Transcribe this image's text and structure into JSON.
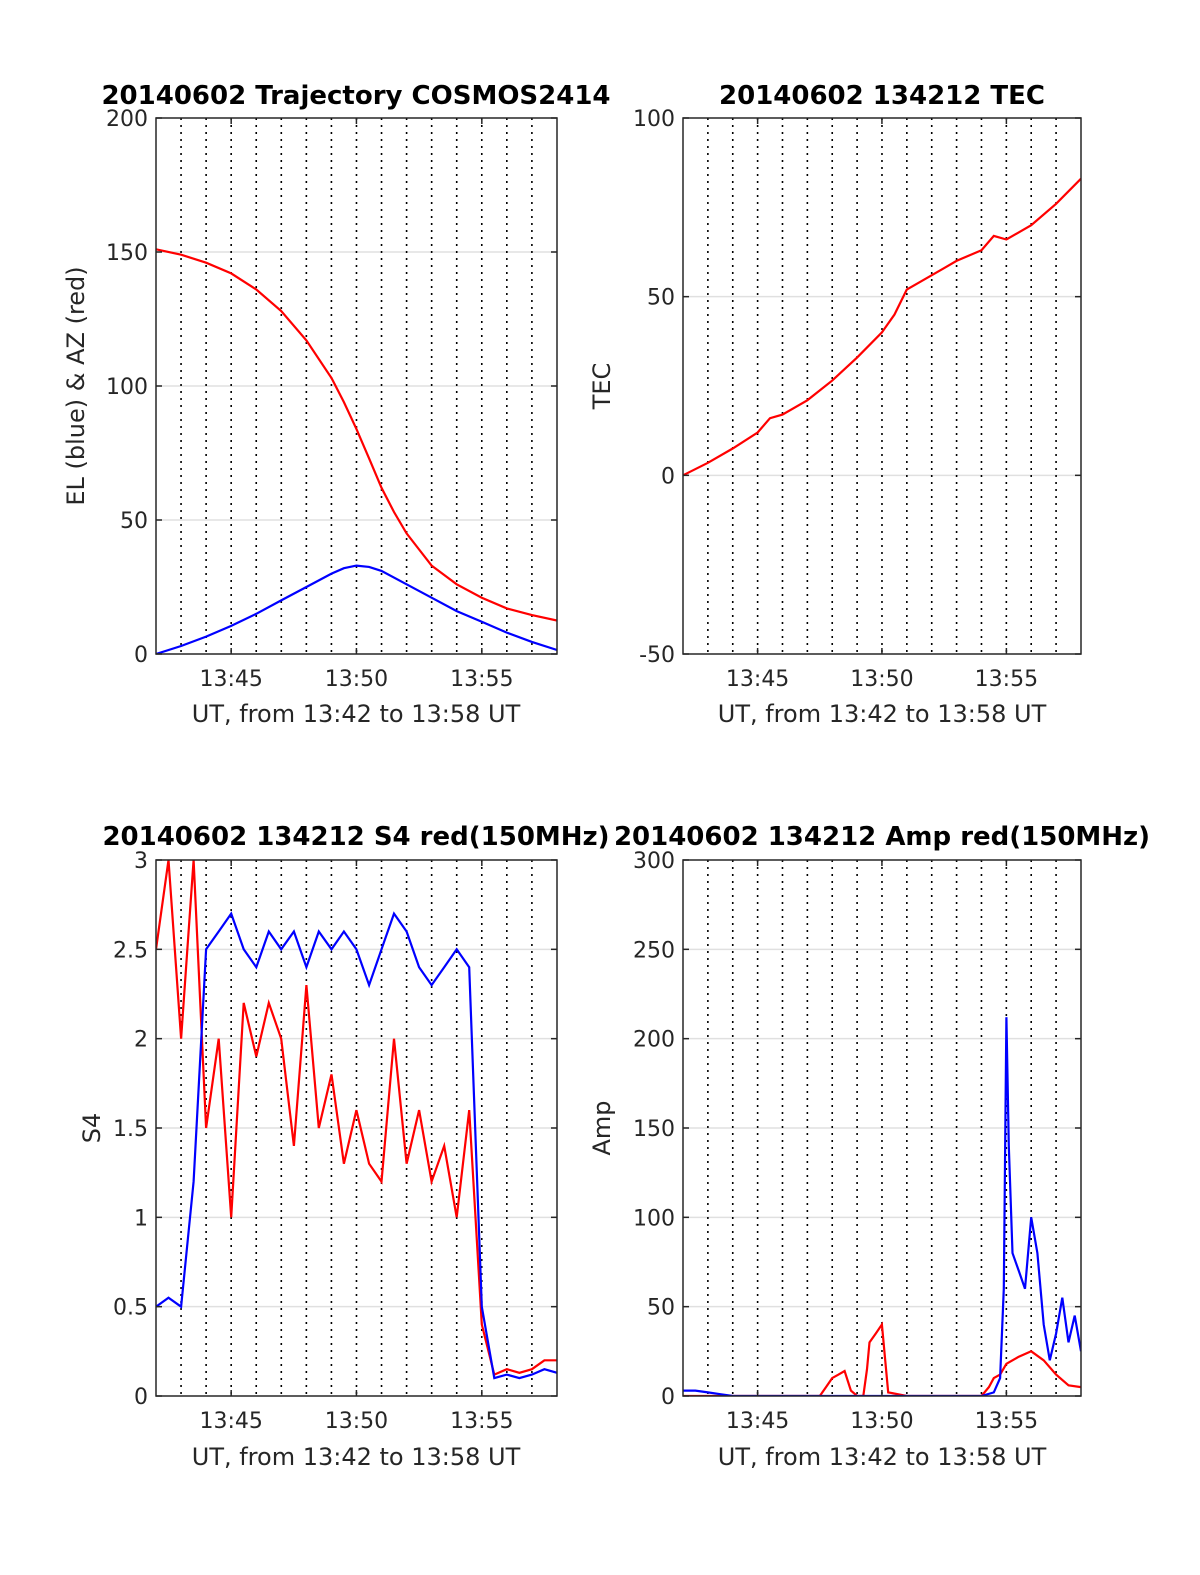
{
  "colors": {
    "series_red": "#ff0000",
    "series_blue": "#0000ff",
    "grid": "#e0e0e0",
    "axis": "#262626",
    "vline": "#000000"
  },
  "chart_data": [
    {
      "type": "line",
      "title": "20140602 Trajectory COSMOS2414",
      "xlabel": "UT, from 13:42 to 13:58 UT",
      "ylabel": "EL (blue) & AZ (red)",
      "xlim": [
        13.7,
        13.9667
      ],
      "ylim": [
        0,
        200
      ],
      "xticks": [
        13.75,
        13.8333,
        13.9167
      ],
      "xticklabels": [
        "13:45",
        "13:50",
        "13:55"
      ],
      "yticks": [
        0,
        50,
        100,
        150,
        200
      ],
      "yticklabels": [
        "0",
        "50",
        "100",
        "150",
        "200"
      ],
      "grid": true,
      "series": [
        {
          "color": "red",
          "x": [
            13.7,
            13.7167,
            13.7333,
            13.75,
            13.7667,
            13.7833,
            13.8,
            13.8167,
            13.825,
            13.8333,
            13.8417,
            13.85,
            13.8583,
            13.8667,
            13.875,
            13.8833,
            13.9,
            13.9167,
            13.9333,
            13.95,
            13.9667
          ],
          "y": [
            151,
            149,
            146,
            142,
            136,
            128,
            117,
            103,
            94,
            84,
            73,
            62,
            53,
            45,
            39,
            33,
            26,
            21,
            17,
            14.5,
            12.5
          ]
        },
        {
          "color": "blue",
          "x": [
            13.7,
            13.7167,
            13.7333,
            13.75,
            13.7667,
            13.7833,
            13.8,
            13.8167,
            13.825,
            13.8333,
            13.8417,
            13.85,
            13.8667,
            13.8833,
            13.9,
            13.9167,
            13.9333,
            13.95,
            13.9667
          ],
          "y": [
            0,
            3,
            6.5,
            10.5,
            15,
            20,
            25,
            30,
            32,
            33,
            32.5,
            31,
            26,
            21,
            16,
            12,
            8,
            4.5,
            1.5
          ]
        }
      ]
    },
    {
      "type": "line",
      "title": "20140602 134212 TEC",
      "xlabel": "UT, from 13:42 to 13:58 UT",
      "ylabel": "TEC",
      "xlim": [
        13.7,
        13.9667
      ],
      "ylim": [
        -50,
        100
      ],
      "xticks": [
        13.75,
        13.8333,
        13.9167
      ],
      "xticklabels": [
        "13:45",
        "13:50",
        "13:55"
      ],
      "yticks": [
        -50,
        0,
        50,
        100
      ],
      "yticklabels": [
        "-50",
        "0",
        "50",
        "100"
      ],
      "grid": true,
      "series": [
        {
          "color": "red",
          "x": [
            13.7,
            13.7167,
            13.7333,
            13.75,
            13.7583,
            13.7667,
            13.7833,
            13.8,
            13.8167,
            13.8333,
            13.8417,
            13.85,
            13.8583,
            13.8667,
            13.875,
            13.8833,
            13.9,
            13.9083,
            13.9167,
            13.9333,
            13.95,
            13.9667
          ],
          "y": [
            0,
            3.5,
            7.5,
            12,
            16,
            17,
            21,
            26.5,
            33,
            40,
            45,
            52,
            54,
            56,
            58,
            60,
            63,
            67,
            66,
            70,
            76,
            83
          ]
        }
      ]
    },
    {
      "type": "line",
      "title": "20140602 134212 S4 red(150MHz)",
      "xlabel": "UT, from 13:42 to 13:58 UT",
      "ylabel": "S4",
      "xlim": [
        13.7,
        13.9667
      ],
      "ylim": [
        0,
        3
      ],
      "xticks": [
        13.75,
        13.8333,
        13.9167
      ],
      "xticklabels": [
        "13:45",
        "13:50",
        "13:55"
      ],
      "yticks": [
        0,
        0.5,
        1,
        1.5,
        2,
        2.5,
        3
      ],
      "yticklabels": [
        "0",
        "0.5",
        "1",
        "1.5",
        "2",
        "2.5",
        "3"
      ],
      "grid": true,
      "series": [
        {
          "color": "red",
          "x": [
            13.7,
            13.7083,
            13.7167,
            13.725,
            13.7333,
            13.7417,
            13.75,
            13.7583,
            13.7667,
            13.775,
            13.7833,
            13.7917,
            13.8,
            13.8083,
            13.8167,
            13.825,
            13.8333,
            13.8417,
            13.85,
            13.8583,
            13.8667,
            13.875,
            13.8833,
            13.8917,
            13.9,
            13.9083,
            13.9167,
            13.925,
            13.9333,
            13.9417,
            13.95,
            13.9583,
            13.9667
          ],
          "y": [
            2.5,
            3.0,
            2.0,
            3.0,
            1.5,
            2.0,
            1.0,
            2.2,
            1.9,
            2.2,
            2.0,
            1.4,
            2.3,
            1.5,
            1.8,
            1.3,
            1.6,
            1.3,
            1.2,
            2.0,
            1.3,
            1.6,
            1.2,
            1.4,
            1.0,
            1.6,
            0.4,
            0.12,
            0.15,
            0.13,
            0.15,
            0.2,
            0.2
          ]
        },
        {
          "color": "blue",
          "x": [
            13.7,
            13.7083,
            13.7167,
            13.725,
            13.7333,
            13.7417,
            13.75,
            13.7583,
            13.7667,
            13.775,
            13.7833,
            13.7917,
            13.8,
            13.8083,
            13.8167,
            13.825,
            13.8333,
            13.8417,
            13.85,
            13.8583,
            13.8667,
            13.875,
            13.8833,
            13.8917,
            13.9,
            13.9083,
            13.9167,
            13.925,
            13.9333,
            13.9417,
            13.95,
            13.9583,
            13.9667
          ],
          "y": [
            0.5,
            0.55,
            0.5,
            1.2,
            2.5,
            2.6,
            2.7,
            2.5,
            2.4,
            2.6,
            2.5,
            2.6,
            2.4,
            2.6,
            2.5,
            2.6,
            2.5,
            2.3,
            2.5,
            2.7,
            2.6,
            2.4,
            2.3,
            2.4,
            2.5,
            2.4,
            0.5,
            0.1,
            0.12,
            0.1,
            0.12,
            0.15,
            0.13
          ]
        }
      ]
    },
    {
      "type": "line",
      "title": "20140602 134212 Amp red(150MHz)",
      "xlabel": "UT, from 13:42 to 13:58 UT",
      "ylabel": "Amp",
      "xlim": [
        13.7,
        13.9667
      ],
      "ylim": [
        0,
        300
      ],
      "xticks": [
        13.75,
        13.8333,
        13.9167
      ],
      "xticklabels": [
        "13:45",
        "13:50",
        "13:55"
      ],
      "yticks": [
        0,
        50,
        100,
        150,
        200,
        250,
        300
      ],
      "yticklabels": [
        "0",
        "50",
        "100",
        "150",
        "200",
        "250",
        "300"
      ],
      "grid": true,
      "series": [
        {
          "color": "red",
          "x": [
            13.7,
            13.7833,
            13.7917,
            13.7958,
            13.8,
            13.8042,
            13.8083,
            13.8125,
            13.8167,
            13.8208,
            13.8233,
            13.825,
            13.8292,
            13.8333,
            13.8375,
            13.85,
            13.9,
            13.905,
            13.9083,
            13.9125,
            13.9167,
            13.925,
            13.9333,
            13.9417,
            13.95,
            13.9583,
            13.9667
          ],
          "y": [
            0,
            0,
            0,
            5,
            10,
            12,
            14,
            3,
            0,
            0,
            15,
            30,
            35,
            40,
            2,
            0,
            0,
            5,
            10,
            12,
            18,
            22,
            25,
            20,
            12,
            6,
            5
          ]
        },
        {
          "color": "blue",
          "x": [
            13.7,
            13.7083,
            13.7167,
            13.725,
            13.7333,
            13.7917,
            13.8333,
            13.8917,
            13.9,
            13.9083,
            13.9125,
            13.915,
            13.9167,
            13.9183,
            13.9208,
            13.925,
            13.9292,
            13.9333,
            13.9375,
            13.9417,
            13.9458,
            13.95,
            13.9542,
            13.9583,
            13.9625,
            13.9667
          ],
          "y": [
            3,
            3,
            2,
            1,
            0,
            0,
            0,
            0,
            0,
            2,
            10,
            60,
            212,
            140,
            80,
            70,
            60,
            100,
            80,
            40,
            20,
            35,
            55,
            30,
            45,
            25
          ]
        }
      ]
    }
  ]
}
